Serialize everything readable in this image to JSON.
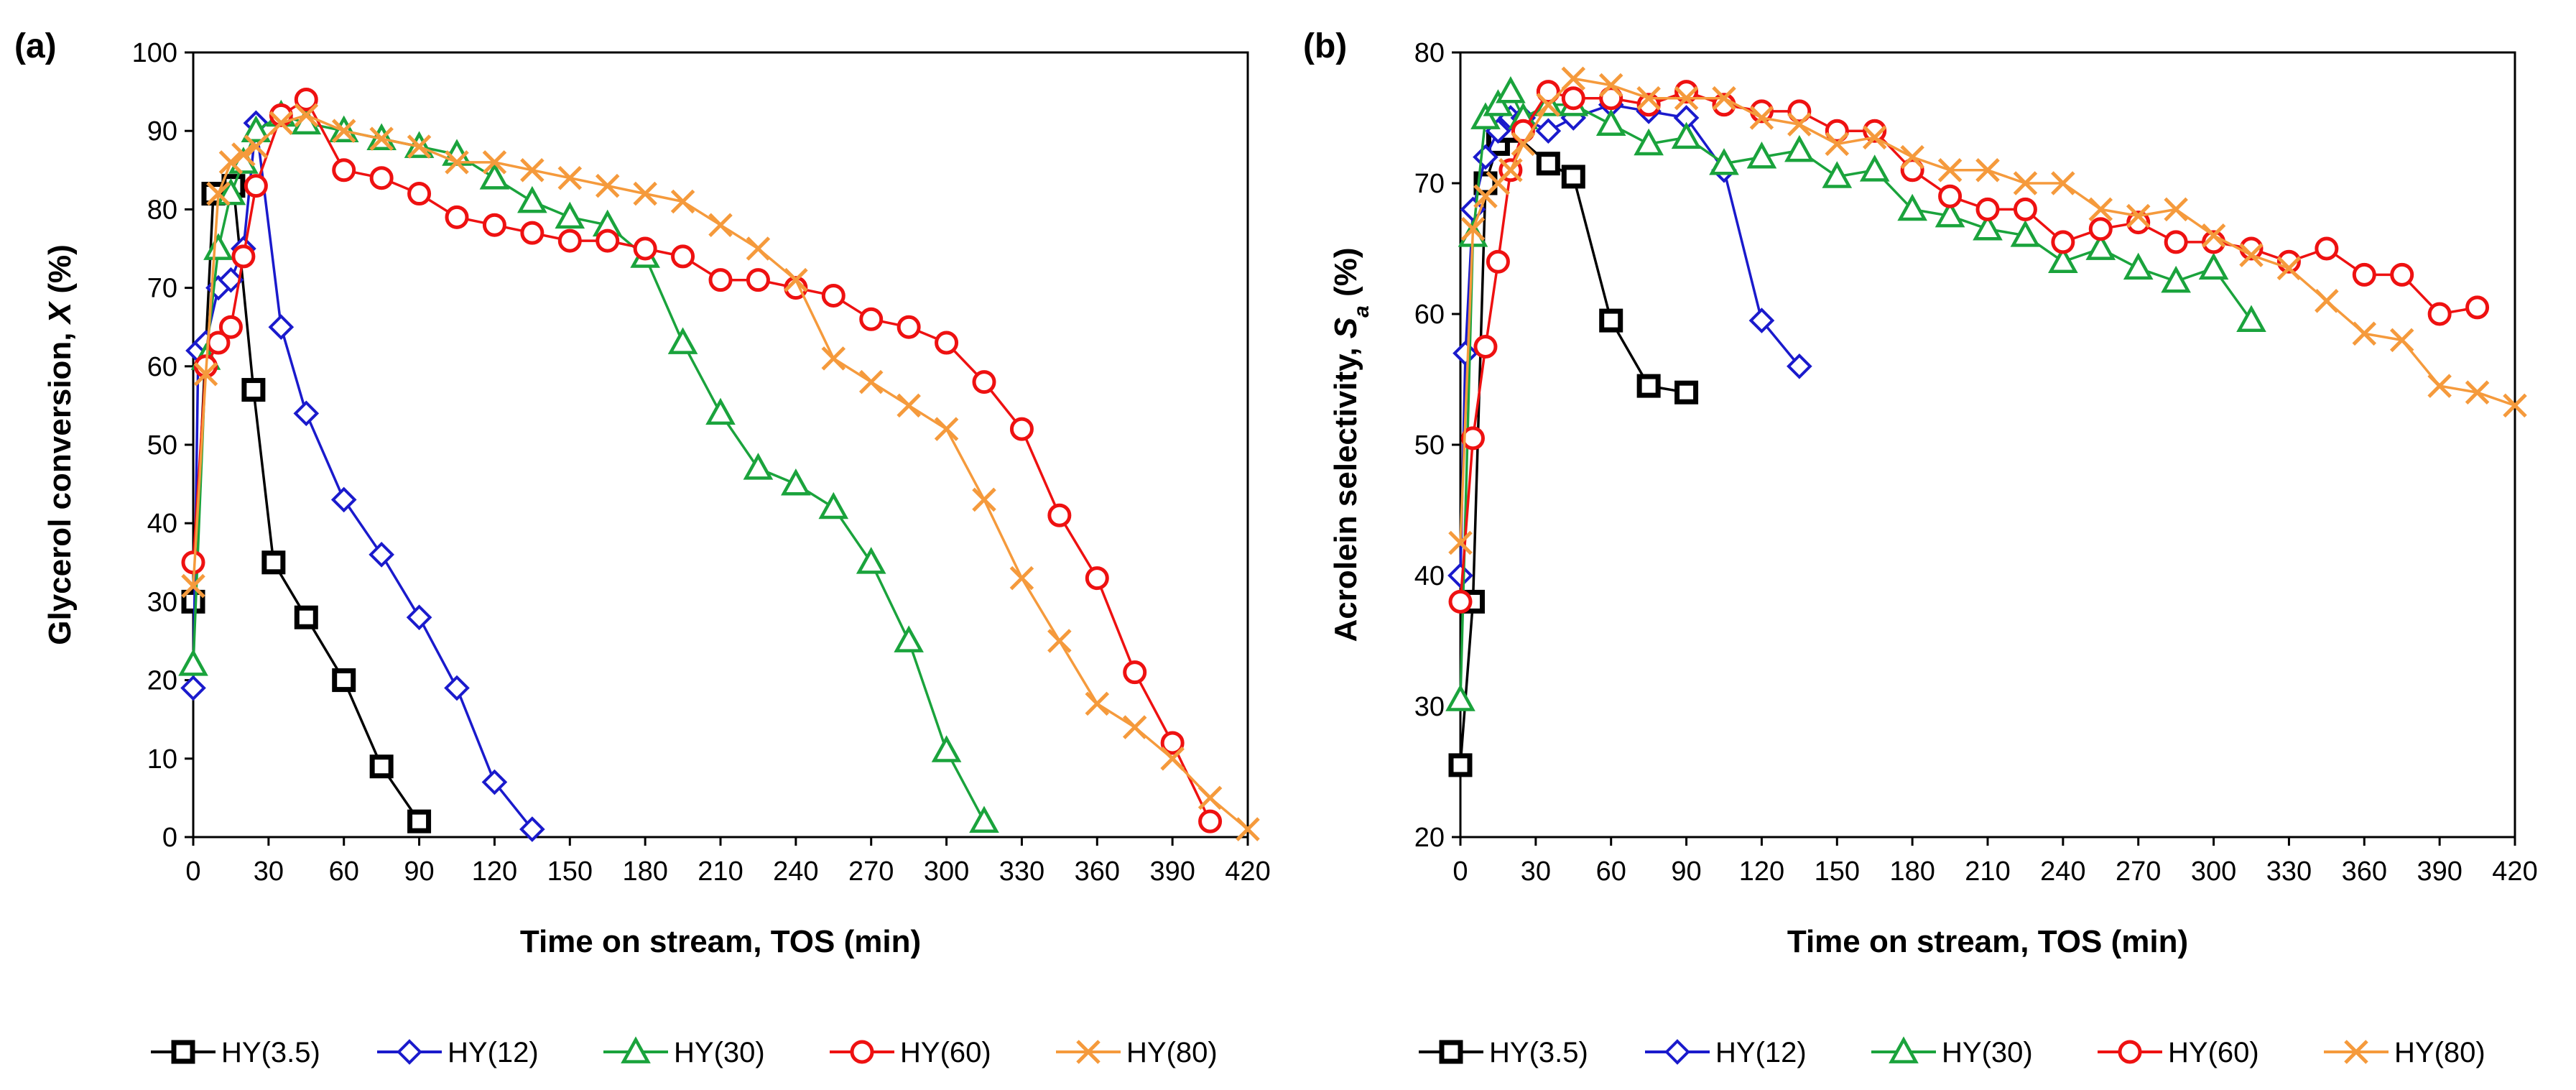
{
  "legend": [
    {
      "name": "HY(3.5)",
      "color": "#000000",
      "marker": "square"
    },
    {
      "name": "HY(12)",
      "color": "#1a1acc",
      "marker": "diamond"
    },
    {
      "name": "HY(30)",
      "color": "#1aa33c",
      "marker": "triangle"
    },
    {
      "name": "HY(60)",
      "color": "#ee1111",
      "marker": "circle"
    },
    {
      "name": "HY(80)",
      "color": "#f59a3c",
      "marker": "cross"
    }
  ],
  "chart_data": [
    {
      "type": "line",
      "panel_label": "(a)",
      "title": "",
      "xlabel": "Time on stream, TOS (min)",
      "ylabel_main": "Glycerol conversion, ",
      "ylabel_symbol": "X",
      "ylabel_sub": "",
      "ylabel_tail": " (%)",
      "xlim": [
        0,
        420
      ],
      "ylim": [
        0,
        100
      ],
      "xticks": [
        "0",
        "30",
        "60",
        "90",
        "120",
        "150",
        "180",
        "210",
        "240",
        "270",
        "300",
        "330",
        "360",
        "390",
        "420"
      ],
      "yticks": [
        "0",
        "10",
        "20",
        "30",
        "40",
        "50",
        "60",
        "70",
        "80",
        "90",
        "100"
      ],
      "series": [
        {
          "name": "HY(3.5)",
          "x": [
            0,
            8,
            16,
            24,
            32,
            45,
            60,
            75,
            90
          ],
          "y": [
            30,
            82,
            83,
            57,
            35,
            28,
            20,
            9,
            2
          ]
        },
        {
          "name": "HY(12)",
          "x": [
            0,
            2,
            5,
            10,
            15,
            20,
            25,
            35,
            45,
            60,
            75,
            90,
            105,
            120,
            135
          ],
          "y": [
            19,
            62,
            63,
            70,
            71,
            75,
            91,
            65,
            54,
            43,
            36,
            28,
            19,
            7,
            1
          ]
        },
        {
          "name": "HY(30)",
          "x": [
            0,
            5,
            10,
            15,
            20,
            25,
            35,
            45,
            60,
            75,
            90,
            105,
            120,
            135,
            150,
            165,
            180,
            195,
            210,
            225,
            240,
            255,
            270,
            285,
            300,
            315
          ],
          "y": [
            22,
            61,
            75,
            82,
            86,
            90,
            92,
            91,
            90,
            89,
            88,
            87,
            84,
            81,
            79,
            78,
            74,
            63,
            54,
            47,
            45,
            42,
            35,
            25,
            11,
            2
          ]
        },
        {
          "name": "HY(60)",
          "x": [
            0,
            5,
            10,
            15,
            20,
            25,
            35,
            45,
            60,
            75,
            90,
            105,
            120,
            135,
            150,
            165,
            180,
            195,
            210,
            225,
            240,
            255,
            270,
            285,
            300,
            315,
            330,
            345,
            360,
            375,
            390,
            405
          ],
          "y": [
            35,
            60,
            63,
            65,
            74,
            83,
            92,
            94,
            85,
            84,
            82,
            79,
            78,
            77,
            76,
            76,
            75,
            74,
            71,
            71,
            70,
            69,
            66,
            65,
            63,
            58,
            52,
            41,
            33,
            21,
            12,
            2
          ]
        },
        {
          "name": "HY(80)",
          "x": [
            0,
            5,
            10,
            15,
            20,
            25,
            35,
            45,
            60,
            75,
            90,
            105,
            120,
            135,
            150,
            165,
            180,
            195,
            210,
            225,
            240,
            255,
            270,
            285,
            300,
            315,
            330,
            345,
            360,
            375,
            390,
            405,
            420
          ],
          "y": [
            32,
            59,
            82,
            86,
            87,
            88,
            91,
            92,
            90,
            89,
            88,
            86,
            86,
            85,
            84,
            83,
            82,
            81,
            78,
            75,
            71,
            61,
            58,
            55,
            52,
            43,
            33,
            25,
            17,
            14,
            10,
            5,
            1
          ]
        }
      ]
    },
    {
      "type": "line",
      "panel_label": "(b)",
      "title": "",
      "xlabel": "Time on stream, TOS (min)",
      "ylabel_main": "Acrolein selectivity, ",
      "ylabel_symbol": "S",
      "ylabel_sub": "a",
      "ylabel_tail": " (%)",
      "xlim": [
        0,
        420
      ],
      "ylim": [
        20,
        80
      ],
      "xticks": [
        "0",
        "30",
        "60",
        "90",
        "120",
        "150",
        "180",
        "210",
        "240",
        "270",
        "300",
        "330",
        "360",
        "390",
        "420"
      ],
      "yticks": [
        "20",
        "30",
        "40",
        "50",
        "60",
        "70",
        "80"
      ],
      "series": [
        {
          "name": "HY(3.5)",
          "x": [
            0,
            5,
            10,
            15,
            20,
            35,
            45,
            60,
            75,
            90
          ],
          "y": [
            25.5,
            38,
            70,
            73,
            74,
            71.5,
            70.5,
            59.5,
            54.5,
            54
          ]
        },
        {
          "name": "HY(12)",
          "x": [
            0,
            2,
            5,
            10,
            15,
            20,
            25,
            35,
            45,
            60,
            75,
            90,
            105,
            120,
            135
          ],
          "y": [
            40,
            57,
            68,
            72,
            74,
            75,
            75,
            74,
            75,
            76,
            75.5,
            75,
            71,
            59.5,
            56
          ]
        },
        {
          "name": "HY(30)",
          "x": [
            0,
            5,
            10,
            15,
            20,
            25,
            35,
            45,
            60,
            75,
            90,
            105,
            120,
            135,
            150,
            165,
            180,
            195,
            210,
            225,
            240,
            255,
            270,
            285,
            300,
            315
          ],
          "y": [
            30.5,
            66,
            75,
            76,
            77,
            75,
            76,
            76,
            74.5,
            73,
            73.5,
            71.5,
            72,
            72.5,
            70.5,
            71,
            68,
            67.5,
            66.5,
            66,
            64,
            65,
            63.5,
            62.5,
            63.5,
            59.5
          ]
        },
        {
          "name": "HY(60)",
          "x": [
            0,
            5,
            10,
            15,
            20,
            25,
            35,
            45,
            60,
            75,
            90,
            105,
            120,
            135,
            150,
            165,
            180,
            195,
            210,
            225,
            240,
            255,
            270,
            285,
            300,
            315,
            330,
            345,
            360,
            375,
            390,
            405
          ],
          "y": [
            38,
            50.5,
            57.5,
            64,
            71,
            74,
            77,
            76.5,
            76.5,
            76,
            77,
            76,
            75.5,
            75.5,
            74,
            74,
            71,
            69,
            68,
            68,
            65.5,
            66.5,
            67,
            65.5,
            65.5,
            65,
            64,
            65,
            63,
            63,
            60,
            60.5
          ]
        },
        {
          "name": "HY(80)",
          "x": [
            0,
            5,
            10,
            15,
            20,
            25,
            35,
            45,
            60,
            75,
            90,
            105,
            120,
            135,
            150,
            165,
            180,
            195,
            210,
            225,
            240,
            255,
            270,
            285,
            300,
            315,
            330,
            345,
            360,
            375,
            390,
            405,
            420
          ],
          "y": [
            42.5,
            66.5,
            69,
            70,
            71,
            73,
            76,
            78,
            77.5,
            76.5,
            76.5,
            76.5,
            75,
            74.5,
            73,
            73.5,
            72,
            71,
            71,
            70,
            70,
            68,
            67.5,
            68,
            66,
            64.5,
            63.5,
            61,
            58.5,
            58,
            54.5,
            54,
            53
          ]
        }
      ]
    }
  ]
}
